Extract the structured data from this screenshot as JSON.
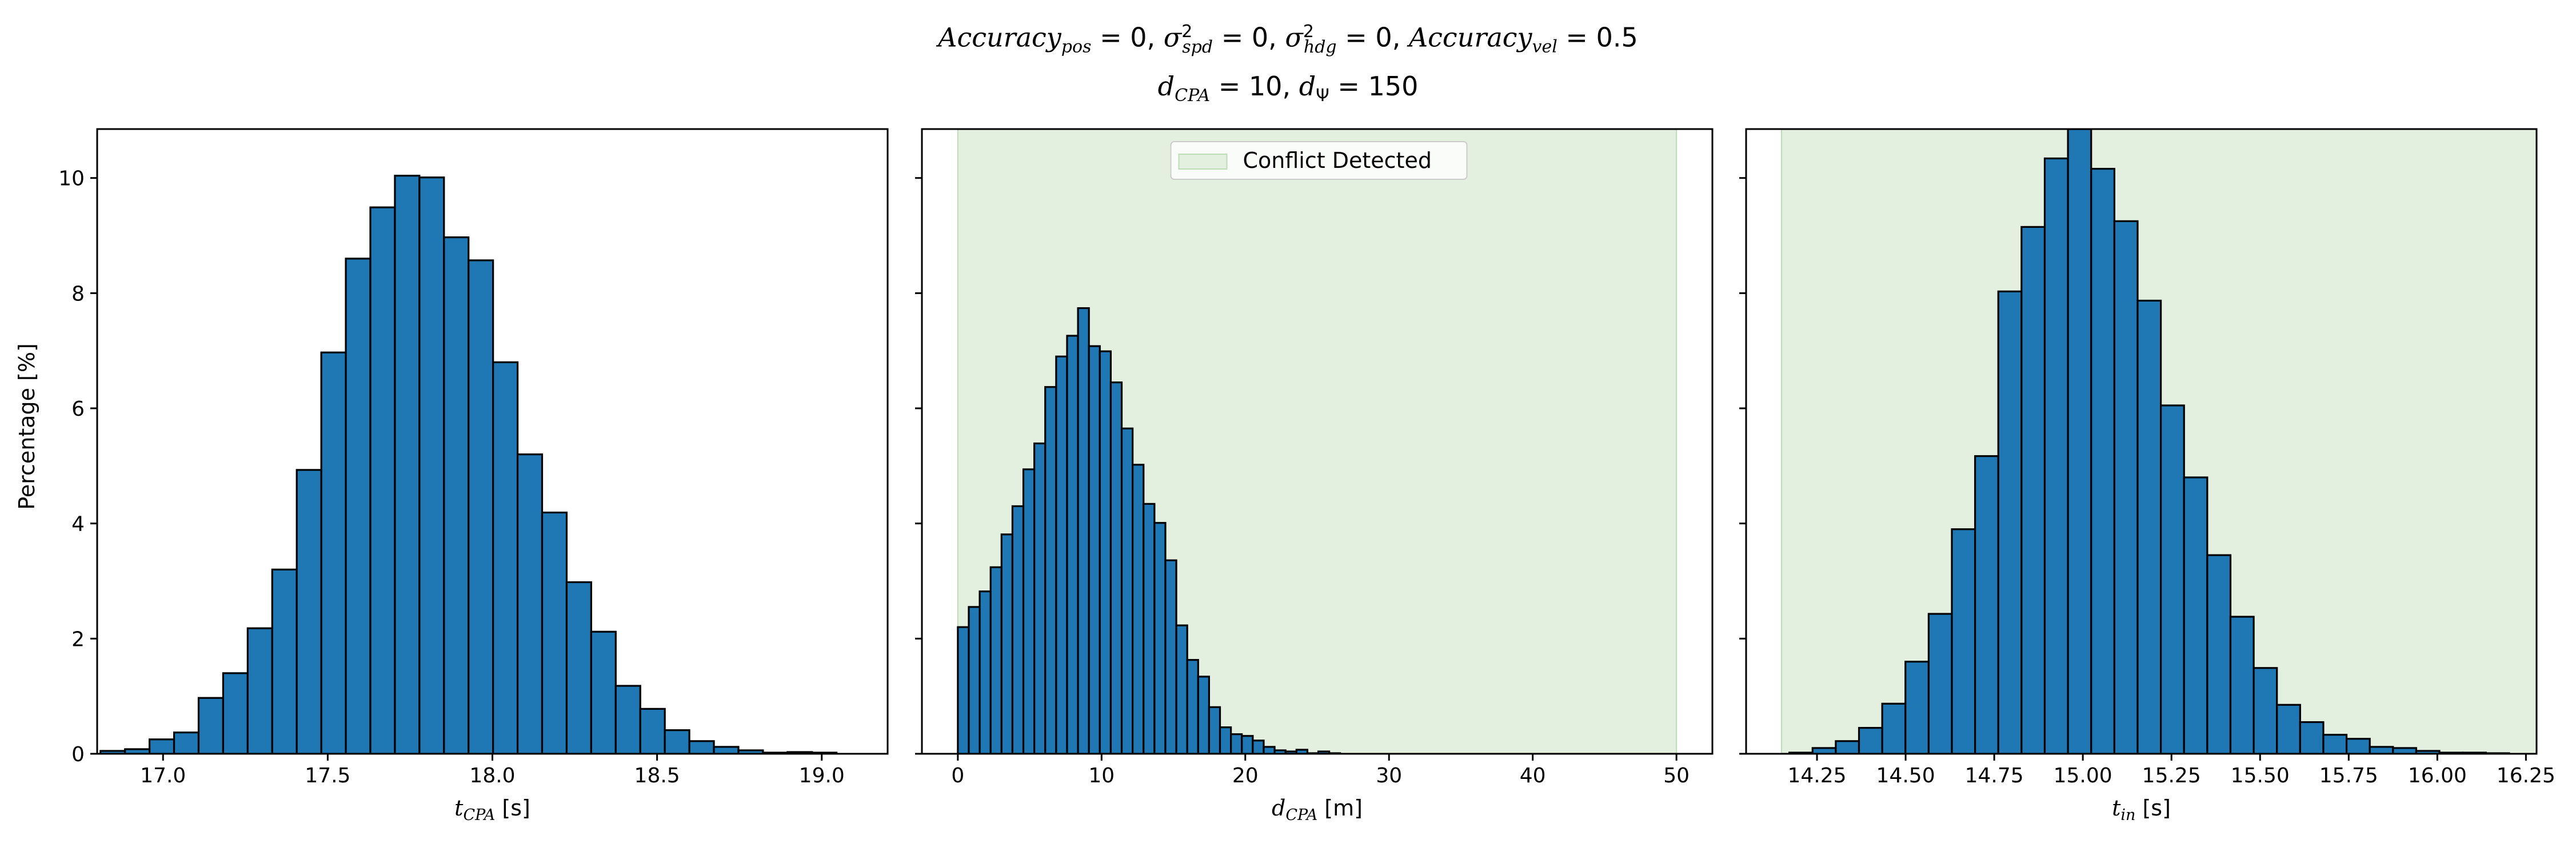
{
  "figure": {
    "title_line1": "Accuracy_pos = 0, σ²_spd = 0, σ²_hdg = 0, Accuracy_vel = 0.5",
    "title_line2": "d_CPA = 10, d_Ψ = 150",
    "ylabel": "Percentage [%]",
    "legend_label": "Conflict Detected"
  },
  "colors": {
    "bar": "#1f77b4",
    "edge": "#000000",
    "band": "#e3f0e0",
    "band_edge": "#bcdcb6"
  },
  "chart_data": [
    {
      "type": "bar",
      "xlabel": "t_CPA [s]",
      "ylabel": "Percentage [%]",
      "xlim": [
        16.8,
        19.2
      ],
      "ylim": [
        0,
        10.85
      ],
      "xticks": [
        17.0,
        17.5,
        18.0,
        18.5,
        19.0
      ],
      "xtick_labels": [
        "17.0",
        "17.5",
        "18.0",
        "18.5",
        "19.0"
      ],
      "yticks": [
        0,
        2,
        4,
        6,
        8,
        10
      ],
      "ytick_labels": [
        "0",
        "2",
        "4",
        "6",
        "8",
        "10"
      ],
      "bin_start": 16.81,
      "bin_width": 0.0745,
      "values": [
        0.05,
        0.08,
        0.25,
        0.37,
        0.97,
        1.4,
        2.18,
        3.2,
        4.93,
        6.97,
        8.6,
        9.49,
        10.04,
        10.01,
        8.97,
        8.57,
        6.8,
        5.2,
        4.19,
        2.98,
        2.12,
        1.18,
        0.78,
        0.41,
        0.22,
        0.12,
        0.06,
        0.02,
        0.03,
        0.02
      ]
    },
    {
      "type": "bar",
      "xlabel": "d_CPA [m]",
      "xlim": [
        -2.5,
        52.5
      ],
      "ylim": [
        0,
        10.85
      ],
      "xticks": [
        0,
        10,
        20,
        30,
        40,
        50
      ],
      "xtick_labels": [
        "0",
        "10",
        "20",
        "30",
        "40",
        "50"
      ],
      "yticks": [
        0,
        2,
        4,
        6,
        8,
        10
      ],
      "shaded_region": [
        0,
        50
      ],
      "legend": [
        "Conflict Detected"
      ],
      "legend_position": "top-center",
      "bin_start": 0,
      "bin_width": 0.76,
      "values": [
        2.2,
        2.55,
        2.82,
        3.24,
        3.81,
        4.3,
        4.94,
        5.39,
        6.37,
        6.9,
        7.26,
        7.74,
        7.08,
        6.99,
        6.45,
        5.65,
        5.02,
        4.34,
        4.01,
        3.36,
        2.23,
        1.63,
        1.34,
        0.81,
        0.46,
        0.34,
        0.31,
        0.23,
        0.12,
        0.06,
        0.04,
        0.07,
        0.01,
        0.04,
        0.01
      ]
    },
    {
      "type": "bar",
      "xlabel": "t_in [s]",
      "xlim": [
        14.05,
        16.28
      ],
      "ylim": [
        0,
        10.85
      ],
      "xticks": [
        14.25,
        14.5,
        14.75,
        15.0,
        15.25,
        15.5,
        15.75,
        16.0,
        16.25
      ],
      "xtick_labels": [
        "14.25",
        "14.50",
        "14.75",
        "15.00",
        "15.25",
        "15.50",
        "15.75",
        "16.00",
        "16.25"
      ],
      "yticks": [
        0,
        2,
        4,
        6,
        8,
        10
      ],
      "shaded_region": [
        14.15,
        16.3
      ],
      "bin_start": 14.172,
      "bin_width": 0.0655,
      "values": [
        0.02,
        0.1,
        0.22,
        0.45,
        0.87,
        1.6,
        2.43,
        3.9,
        5.17,
        8.03,
        9.15,
        10.34,
        10.85,
        10.16,
        9.25,
        7.87,
        6.05,
        4.8,
        3.45,
        2.38,
        1.49,
        0.85,
        0.55,
        0.33,
        0.26,
        0.12,
        0.1,
        0.05,
        0.02,
        0.02,
        0.01
      ]
    }
  ]
}
